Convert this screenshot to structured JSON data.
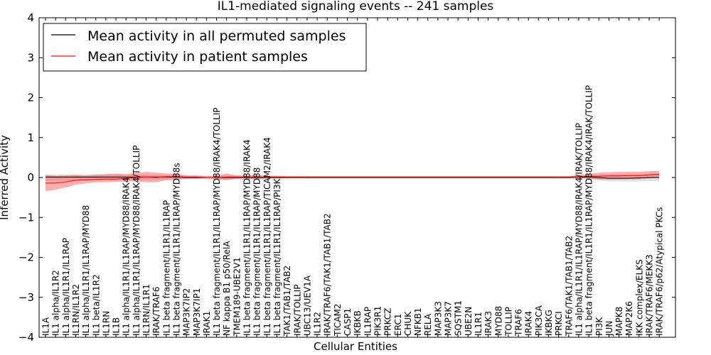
{
  "chart_data": {
    "type": "line",
    "title": "IL1-mediated signaling events -- 241 samples",
    "xlabel": "Cellular Entities",
    "ylabel": "Inferred Activity",
    "ylim": [
      -4,
      4
    ],
    "yticks": [
      -4,
      -3,
      -2,
      -1,
      0,
      1,
      2,
      3,
      4
    ],
    "ytick_labels": [
      "−4",
      "−3",
      "−2",
      "−1",
      "0",
      "1",
      "2",
      "3",
      "4"
    ],
    "legend": {
      "position": "top-left",
      "entries": [
        {
          "label": "Mean activity in all permuted samples",
          "color": "#000000"
        },
        {
          "label": "Mean activity in patient samples",
          "color": "#ff0000"
        }
      ]
    },
    "categories": [
      "IL1A",
      "IL1 alpha/IL1R2",
      "IL1 alpha/IL1R1/IL1RAP",
      "IL1RN/IL1R2",
      "IL1 alpha/IL1R1/IL1RAP/MYD88",
      "IL1 beta/IL1R2",
      "IL1RN",
      "IL1B",
      "IL1 alpha/IL1R1/IL1RAP/MYD88/IRAK4",
      "IL1 alpha/IL1R1/IL1RAP/MYD88/IRAK4/TOLLIP",
      "IL1RN/IL1R1",
      "IRAK/TRAF6",
      "IL1 beta fragment/IL1R1/IL1RAP",
      "IL1 beta fragment/IL1R1/IL1RAP/MYD88s",
      "MAP3K7IP2",
      "MAP3K7IP1",
      "IRAK1",
      "IL1 beta fragment/IL1R1/IL1RAP/MYD88/IRAK4/TOLLIP",
      "NF kappa B1 p50/RelA",
      "TMEM189-UBE2V1",
      "IL1 beta fragment/IL1R1/IL1RAP/MYD88/IRAK4",
      "IL1 beta fragment/IL1R1/IL1RAP/MYD88",
      "IL1 beta fragment/IL1R1/IL1RAP/TICAM2/IRAK4",
      "IL1 beta fragment/IL1R1/IL1RAP/PI3K",
      "TAK1/TAB1/TAB2",
      "IRAK/TOLLIP",
      "UBC13/UEV1A",
      "IL1R2",
      "IRAK/TRAF6/TAK1/TAB1/TAB2",
      "TICAM2",
      "CASP1",
      "IKBKB",
      "IL1RAP",
      "PIK3R1",
      "PRKCZ",
      "ERC1",
      "CHUK",
      "NFKB1",
      "RELA",
      "MAP3K3",
      "MAP3K7",
      "SQSTM1",
      "UBE2N",
      "IL1R1",
      "IRAK3",
      "MYD88",
      "TOLLIP",
      "TRAF6",
      "IRAK4",
      "PIK3CA",
      "IKBKG",
      "PRKCI",
      "TRAF6/TAK1/TAB1/TAB2",
      "IL1 alpha/IL1R1/IL1RAP/MYD88/IRAK4/IRAK/TOLLIP",
      "IL1 beta fragment/IL1R1/IL1RAP/MYD88/IRAK4/IRAK/TOLLIP",
      "PI3K",
      "JUN",
      "MAPK8",
      "MAP2K6",
      "IKK complex/ELKS",
      "IRAK/TRAF6/MEKK3",
      "IRAK/TRAF6/p62/Atypical PKCs"
    ],
    "series": [
      {
        "name": "Mean activity in all permuted samples",
        "color": "#000000",
        "values": [
          0.01,
          0.01,
          0.01,
          0.01,
          0.01,
          0.01,
          0.01,
          0.01,
          0.01,
          0.01,
          0.01,
          0.01,
          0.01,
          0.01,
          0.0,
          0.0,
          0.0,
          0.0,
          0.0,
          0.0,
          0.0,
          0.0,
          0.0,
          0.0,
          0.0,
          0.0,
          0.0,
          0.0,
          0.0,
          0.0,
          0.0,
          0.0,
          0.0,
          0.0,
          0.0,
          0.0,
          0.0,
          0.0,
          0.0,
          0.0,
          0.0,
          0.0,
          0.0,
          0.0,
          0.0,
          0.0,
          0.0,
          0.0,
          0.0,
          0.0,
          0.0,
          0.0,
          0.0,
          0.01,
          0.01,
          0.0,
          -0.02,
          -0.02,
          -0.02,
          -0.01,
          0.0,
          0.0
        ],
        "lower": [
          -0.08,
          -0.08,
          -0.08,
          -0.08,
          -0.07,
          -0.07,
          -0.07,
          -0.07,
          -0.06,
          -0.06,
          -0.06,
          -0.06,
          -0.05,
          -0.05,
          -0.04,
          -0.04,
          -0.04,
          -0.05,
          -0.05,
          -0.05,
          -0.06,
          -0.06,
          -0.05,
          -0.05,
          -0.04,
          -0.04,
          -0.04,
          -0.03,
          -0.03,
          -0.03,
          -0.03,
          -0.03,
          -0.03,
          -0.03,
          -0.03,
          -0.03,
          -0.03,
          -0.03,
          -0.03,
          -0.03,
          -0.03,
          -0.03,
          -0.03,
          -0.03,
          -0.03,
          -0.03,
          -0.03,
          -0.03,
          -0.03,
          -0.03,
          -0.03,
          -0.03,
          -0.04,
          -0.05,
          -0.05,
          -0.07,
          -0.1,
          -0.1,
          -0.1,
          -0.1,
          -0.09,
          -0.09
        ],
        "upper": [
          0.08,
          0.08,
          0.08,
          0.08,
          0.08,
          0.08,
          0.08,
          0.07,
          0.07,
          0.07,
          0.07,
          0.06,
          0.06,
          0.06,
          0.05,
          0.05,
          0.05,
          0.05,
          0.05,
          0.05,
          0.05,
          0.05,
          0.05,
          0.05,
          0.04,
          0.04,
          0.04,
          0.03,
          0.03,
          0.03,
          0.03,
          0.03,
          0.03,
          0.03,
          0.03,
          0.03,
          0.03,
          0.03,
          0.03,
          0.03,
          0.03,
          0.03,
          0.03,
          0.03,
          0.03,
          0.03,
          0.03,
          0.03,
          0.03,
          0.03,
          0.03,
          0.03,
          0.04,
          0.05,
          0.05,
          0.06,
          0.07,
          0.07,
          0.07,
          0.07,
          0.07,
          0.07
        ]
      },
      {
        "name": "Mean activity in patient samples",
        "color": "#ff0000",
        "values": [
          -0.14,
          -0.14,
          -0.11,
          -0.07,
          -0.06,
          -0.05,
          -0.04,
          -0.04,
          -0.02,
          0.0,
          0.01,
          0.0,
          0.02,
          0.02,
          0.01,
          0.01,
          0.0,
          0.0,
          0.01,
          0.01,
          0.01,
          0.01,
          0.01,
          0.01,
          0.01,
          0.01,
          0.01,
          0.01,
          0.01,
          0.01,
          0.01,
          0.01,
          0.01,
          0.01,
          0.01,
          0.01,
          0.01,
          0.01,
          0.01,
          0.01,
          0.01,
          0.01,
          0.01,
          0.01,
          0.01,
          0.01,
          0.01,
          0.01,
          0.01,
          0.01,
          0.01,
          0.01,
          0.01,
          0.02,
          0.03,
          0.03,
          0.04,
          0.04,
          0.05,
          0.05,
          0.07,
          0.08
        ],
        "lower": [
          -0.34,
          -0.31,
          -0.25,
          -0.18,
          -0.15,
          -0.12,
          -0.12,
          -0.11,
          -0.1,
          -0.1,
          -0.12,
          -0.12,
          -0.07,
          -0.06,
          -0.03,
          -0.03,
          -0.02,
          -0.05,
          -0.07,
          -0.03,
          -0.03,
          -0.04,
          -0.02,
          -0.02,
          -0.01,
          -0.01,
          -0.01,
          -0.01,
          -0.01,
          -0.01,
          -0.01,
          -0.01,
          -0.01,
          -0.01,
          -0.01,
          -0.01,
          -0.01,
          -0.01,
          -0.01,
          -0.01,
          -0.01,
          -0.01,
          -0.01,
          -0.01,
          -0.01,
          -0.01,
          -0.01,
          -0.01,
          -0.01,
          -0.01,
          -0.01,
          -0.01,
          -0.01,
          -0.02,
          -0.03,
          -0.05,
          -0.05,
          -0.05,
          -0.04,
          -0.04,
          -0.02,
          -0.01
        ],
        "upper": [
          0.06,
          0.04,
          0.05,
          0.06,
          0.05,
          0.07,
          0.08,
          0.1,
          0.08,
          0.12,
          0.14,
          0.12,
          0.1,
          0.1,
          0.05,
          0.05,
          0.03,
          0.05,
          0.1,
          0.05,
          0.05,
          0.06,
          0.04,
          0.04,
          0.03,
          0.03,
          0.03,
          0.03,
          0.03,
          0.03,
          0.03,
          0.03,
          0.03,
          0.03,
          0.03,
          0.03,
          0.03,
          0.03,
          0.03,
          0.03,
          0.03,
          0.03,
          0.03,
          0.03,
          0.03,
          0.03,
          0.03,
          0.03,
          0.03,
          0.03,
          0.03,
          0.03,
          0.03,
          0.06,
          0.09,
          0.12,
          0.13,
          0.14,
          0.14,
          0.14,
          0.16,
          0.16
        ]
      }
    ]
  }
}
